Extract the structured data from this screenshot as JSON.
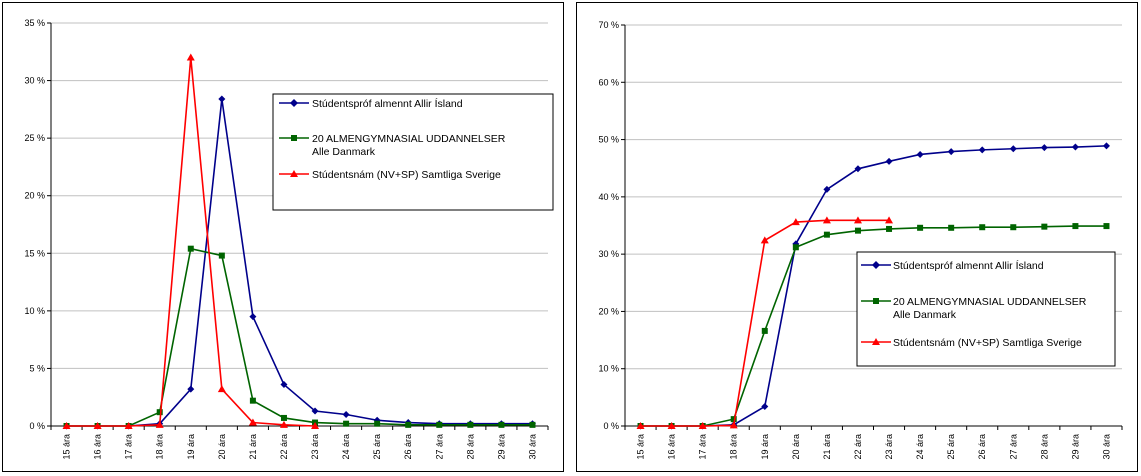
{
  "chart_data": [
    {
      "type": "line",
      "title": "",
      "xlabel": "",
      "ylabel": "",
      "categories": [
        "15 ára",
        "16 ára",
        "17 ára",
        "18 ára",
        "19 ára",
        "20 ára",
        "21 ára",
        "22 ára",
        "23 ára",
        "24 ára",
        "25 ára",
        "26 ára",
        "27 ára",
        "28 ára",
        "29 ára",
        "30 ára"
      ],
      "ylim": [
        0,
        35
      ],
      "yticks": [
        "0 %",
        "5 %",
        "10 %",
        "15 %",
        "20 %",
        "25 %",
        "30 %",
        "35 %"
      ],
      "ytick_values": [
        0,
        5,
        10,
        15,
        20,
        25,
        30,
        35
      ],
      "grid": "horizontal",
      "legend_position": "right",
      "series": [
        {
          "name": "Stúdentspróf almennt Allir Ísland",
          "color": "#00008B",
          "marker": "diamond",
          "values": [
            0,
            0,
            0,
            0.2,
            3.2,
            28.4,
            9.5,
            3.6,
            1.3,
            1.0,
            0.5,
            0.3,
            0.2,
            0.2,
            0.2,
            0.2
          ]
        },
        {
          "name": "20 ALMENGYMNASIAL UDDANNELSER Alle Danmark",
          "color": "#006400",
          "marker": "square",
          "values": [
            0,
            0,
            0,
            1.2,
            15.4,
            14.8,
            2.2,
            0.7,
            0.3,
            0.2,
            0.2,
            0.1,
            0.1,
            0.1,
            0.1,
            0.1
          ]
        },
        {
          "name": "Stúdentsnám (NV+SP) Samtliga Sverige",
          "color": "#FF0000",
          "marker": "triangle",
          "values": [
            0,
            0,
            0,
            0.1,
            32.0,
            3.2,
            0.3,
            0.1,
            0.0,
            null,
            null,
            null,
            null,
            null,
            null,
            null
          ]
        }
      ]
    },
    {
      "type": "line",
      "title": "",
      "xlabel": "",
      "ylabel": "",
      "categories": [
        "15 ára",
        "16 ára",
        "17 ára",
        "18 ára",
        "19 ára",
        "20 ára",
        "21 ára",
        "22 ára",
        "23 ára",
        "24 ára",
        "25 ára",
        "26 ára",
        "27 ára",
        "28 ára",
        "29 ára",
        "30 ára"
      ],
      "ylim": [
        0,
        70
      ],
      "yticks": [
        "0 %",
        "10 %",
        "20 %",
        "30 %",
        "40 %",
        "50 %",
        "60 %",
        "70 %"
      ],
      "ytick_values": [
        0,
        10,
        20,
        30,
        40,
        50,
        60,
        70
      ],
      "grid": "horizontal",
      "legend_position": "right",
      "series": [
        {
          "name": "Stúdentspróf almennt Allir Ísland",
          "color": "#00008B",
          "marker": "diamond",
          "values": [
            0,
            0,
            0,
            0.2,
            3.4,
            31.8,
            41.3,
            44.9,
            46.2,
            47.4,
            47.9,
            48.2,
            48.4,
            48.6,
            48.7,
            48.9
          ]
        },
        {
          "name": "20 ALMENGYMNASIAL UDDANNELSER Alle Danmark",
          "color": "#006400",
          "marker": "square",
          "values": [
            0,
            0,
            0,
            1.2,
            16.6,
            31.2,
            33.4,
            34.1,
            34.4,
            34.6,
            34.6,
            34.7,
            34.7,
            34.8,
            34.9,
            34.9
          ]
        },
        {
          "name": "Stúdentsnám (NV+SP) Samtliga Sverige",
          "color": "#FF0000",
          "marker": "triangle",
          "values": [
            0,
            0,
            0,
            0.1,
            32.4,
            35.6,
            35.9,
            35.9,
            35.9,
            null,
            null,
            null,
            null,
            null,
            null,
            null
          ]
        }
      ]
    }
  ],
  "legend_left": {
    "line1": "Stúdentspróf almennt Allir Ísland",
    "line2a": "20 ALMENGYMNASIAL UDDANNELSER",
    "line2b": "Alle Danmark",
    "line3": "Stúdentsnám (NV+SP) Samtliga Sverige"
  },
  "legend_right": {
    "line1": "Stúdentspróf almennt Allir Ísland",
    "line2a": "20 ALMENGYMNASIAL UDDANNELSER",
    "line2b": "Alle Danmark",
    "line3": "Stúdentsnám (NV+SP) Samtliga Sverige"
  }
}
